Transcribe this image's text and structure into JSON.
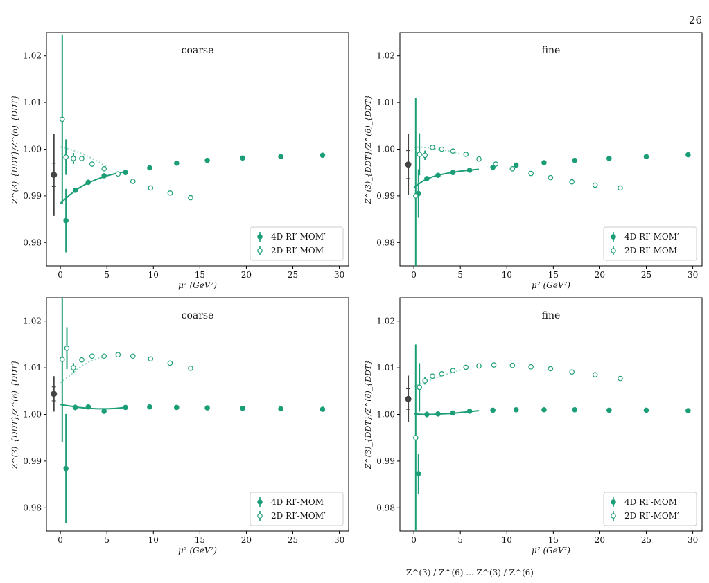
{
  "page_number": "26",
  "caption_fragment": "Z^(3) / Z^(6) ... Z^(3) / Z^(6)",
  "colors": {
    "green": "#1b9e77",
    "light_green": "#98d8c2",
    "estimate": "#444444"
  },
  "chart_data": [
    {
      "type": "scatter",
      "title": "coarse",
      "xlabel": "μ² (GeV²)",
      "ylabel": "Z^(3)_{DDT}/Z^(6)_{DDT}",
      "xlim": [
        -1.5,
        31
      ],
      "ylim": [
        0.975,
        1.025
      ],
      "xticks": [
        0,
        5,
        10,
        15,
        20,
        25,
        30
      ],
      "yticks": [
        0.98,
        0.99,
        1.0,
        1.01,
        1.02
      ],
      "legend": "bottom-right",
      "series": [
        {
          "name": "4D RI′-MOM′",
          "marker": "filled",
          "x": [
            0.6,
            1.6,
            3.0,
            4.7,
            7.0,
            9.6,
            12.5,
            15.8,
            19.6,
            23.7,
            28.2
          ],
          "y": [
            0.9847,
            0.9912,
            0.9929,
            0.9943,
            0.995,
            0.996,
            0.997,
            0.9976,
            0.9981,
            0.9984,
            0.9987
          ],
          "err": [
            0.0068,
            0.0004,
            0.0003,
            0.0002,
            0.0002,
            0.0002,
            0.0002,
            0.0002,
            0.0002,
            0.0002,
            0.0002
          ]
        },
        {
          "name": "2D RI′-MOM",
          "marker": "open",
          "x": [
            0.2,
            0.6,
            1.4,
            2.3,
            3.4,
            4.7,
            6.2,
            7.8,
            9.7,
            11.8,
            14.0
          ],
          "y": [
            1.0064,
            0.9983,
            0.998,
            0.998,
            0.9968,
            0.9958,
            0.9947,
            0.9931,
            0.9917,
            0.9906,
            0.9896
          ],
          "err": [
            0.0182,
            0.0038,
            0.0012,
            0.0004,
            0.0003,
            0.0003,
            0.0002,
            0.0002,
            0.0002,
            0.0002,
            0.0002
          ]
        }
      ],
      "fits": [
        {
          "series": 0,
          "x": [
            0,
            0.5,
            1,
            2,
            3,
            4,
            5,
            6,
            7
          ],
          "y": [
            0.9884,
            0.9893,
            0.9902,
            0.9917,
            0.9928,
            0.9936,
            0.9943,
            0.9948,
            0.9952
          ]
        },
        {
          "series": 1,
          "x": [
            0,
            1,
            2,
            3,
            4,
            5
          ],
          "y": [
            1.0005,
            1.0,
            0.9993,
            0.9984,
            0.9974,
            0.9962
          ]
        }
      ],
      "estimate": {
        "x": -0.7,
        "y": 0.9945,
        "err_total": 0.0088,
        "err_stat": 0.0025
      }
    },
    {
      "type": "scatter",
      "title": "fine",
      "xlabel": "μ² (GeV²)",
      "ylabel": "Z^(3)_{DDT}/Z^(6)_{DDT}",
      "xlim": [
        -1.5,
        31
      ],
      "ylim": [
        0.975,
        1.025
      ],
      "xticks": [
        0,
        5,
        10,
        15,
        20,
        25,
        30
      ],
      "yticks": [
        0.98,
        0.99,
        1.0,
        1.01,
        1.02
      ],
      "legend": "bottom-right",
      "series": [
        {
          "name": "4D RI′-MOM′",
          "marker": "filled",
          "x": [
            0.5,
            1.4,
            2.6,
            4.2,
            6.0,
            8.5,
            11.0,
            14.0,
            17.3,
            21.0,
            25.0,
            29.5
          ],
          "y": [
            0.9905,
            0.9937,
            0.9944,
            0.995,
            0.9955,
            0.9961,
            0.9966,
            0.9971,
            0.9976,
            0.998,
            0.9984,
            0.9988
          ],
          "err": [
            0.0052,
            0.0004,
            0.0003,
            0.0002,
            0.0002,
            0.0002,
            0.0002,
            0.0002,
            0.0002,
            0.0002,
            0.0002,
            0.0002
          ]
        },
        {
          "name": "2D RI′-MOM",
          "marker": "open",
          "x": [
            0.2,
            0.6,
            1.2,
            2.0,
            3.0,
            4.2,
            5.6,
            7.0,
            8.8,
            10.6,
            12.6,
            14.7,
            17.0,
            19.5,
            22.2
          ],
          "y": [
            0.99,
            0.9989,
            0.9987,
            1.0004,
            1.0,
            0.9996,
            0.9989,
            0.9979,
            0.9968,
            0.9958,
            0.9948,
            0.9939,
            0.993,
            0.9923,
            0.9917
          ],
          "err": [
            0.021,
            0.0045,
            0.001,
            0.0004,
            0.0003,
            0.0002,
            0.0002,
            0.0002,
            0.0002,
            0.0002,
            0.0002,
            0.0002,
            0.0002,
            0.0002,
            0.0002
          ]
        }
      ],
      "fits": [
        {
          "series": 0,
          "x": [
            0,
            0.5,
            1,
            2,
            3,
            4,
            5,
            6,
            7
          ],
          "y": [
            0.9918,
            0.9925,
            0.9932,
            0.9941,
            0.9946,
            0.995,
            0.9953,
            0.9955,
            0.9957
          ]
        },
        {
          "series": 1,
          "x": [
            0,
            1,
            2,
            3,
            4,
            5
          ],
          "y": [
            1.0004,
            1.0004,
            1.0002,
            0.9999,
            0.9995,
            0.999
          ]
        }
      ],
      "estimate": {
        "x": -0.6,
        "y": 0.9967,
        "err_total": 0.0065,
        "err_stat": 0.003
      }
    },
    {
      "type": "scatter",
      "title": "coarse",
      "xlabel": "μ² (GeV²)",
      "ylabel": "Z^(3)_{DDT}/Z^(6)_{DDT}",
      "xlim": [
        -1.5,
        31
      ],
      "ylim": [
        0.975,
        1.025
      ],
      "xticks": [
        0,
        5,
        10,
        15,
        20,
        25,
        30
      ],
      "yticks": [
        0.98,
        0.99,
        1.0,
        1.01,
        1.02
      ],
      "legend": "bottom-right",
      "series": [
        {
          "name": "4D RI′-MOM",
          "marker": "filled",
          "x": [
            0.6,
            1.6,
            3.0,
            4.7,
            7.0,
            9.6,
            12.5,
            15.8,
            19.6,
            23.7,
            28.2
          ],
          "y": [
            0.9884,
            1.0015,
            1.0016,
            1.0007,
            1.0015,
            1.0016,
            1.0015,
            1.0014,
            1.0013,
            1.0012,
            1.0011
          ],
          "err": [
            0.0117,
            0.0006,
            0.0002,
            0.0006,
            0.0002,
            0.0002,
            0.0002,
            0.0002,
            0.0002,
            0.0002,
            0.0002
          ]
        },
        {
          "name": "2D RI′-MOM′",
          "marker": "open",
          "x": [
            0.2,
            0.7,
            1.4,
            2.3,
            3.4,
            4.7,
            6.2,
            7.8,
            9.7,
            11.8,
            14.0
          ],
          "y": [
            1.0118,
            1.0142,
            1.01,
            1.0117,
            1.0125,
            1.0125,
            1.0128,
            1.0125,
            1.0119,
            1.011,
            1.0099
          ],
          "err": [
            0.0177,
            0.0045,
            0.001,
            0.0004,
            0.0003,
            0.0002,
            0.0002,
            0.0002,
            0.0002,
            0.0002,
            0.0002
          ]
        }
      ],
      "fits": [
        {
          "series": 0,
          "x": [
            0,
            1,
            2,
            3,
            4,
            5,
            6,
            7
          ],
          "y": [
            1.0021,
            1.0018,
            1.0015,
            1.0013,
            1.0012,
            1.0012,
            1.0013,
            1.0015
          ]
        },
        {
          "series": 1,
          "x": [
            0,
            1,
            2,
            3,
            4,
            5
          ],
          "y": [
            1.0068,
            1.0083,
            1.01,
            1.0112,
            1.012,
            1.0124
          ]
        }
      ],
      "estimate": {
        "x": -0.7,
        "y": 1.0044,
        "err_total": 0.0038,
        "err_stat": 0.0015
      }
    },
    {
      "type": "scatter",
      "title": "fine",
      "xlabel": "μ² (GeV²)",
      "ylabel": "Z^(3)_{DDT}/Z^(6)_{DDT}",
      "xlim": [
        -1.5,
        31
      ],
      "ylim": [
        0.975,
        1.025
      ],
      "xticks": [
        0,
        5,
        10,
        15,
        20,
        25,
        30
      ],
      "yticks": [
        0.98,
        0.99,
        1.0,
        1.01,
        1.02
      ],
      "legend": "bottom-right",
      "series": [
        {
          "name": "4D RI′-MOM",
          "marker": "filled",
          "x": [
            0.5,
            1.4,
            2.6,
            4.2,
            6.0,
            8.5,
            11.0,
            14.0,
            17.3,
            21.0,
            25.0,
            29.5
          ],
          "y": [
            0.9873,
            1.0,
            1.0001,
            1.0003,
            1.0007,
            1.0009,
            1.001,
            1.001,
            1.001,
            1.0009,
            1.0009,
            1.0008
          ],
          "err": [
            0.0043,
            0.0006,
            0.0002,
            0.0002,
            0.0002,
            0.0002,
            0.0002,
            0.0002,
            0.0002,
            0.0002,
            0.0002,
            0.0002
          ]
        },
        {
          "name": "2D RI′-MOM′",
          "marker": "open",
          "x": [
            0.2,
            0.6,
            1.2,
            2.0,
            3.0,
            4.2,
            5.6,
            7.0,
            8.6,
            10.6,
            12.6,
            14.7,
            17.0,
            19.5,
            22.2
          ],
          "y": [
            0.995,
            1.0058,
            1.0072,
            1.0082,
            1.0087,
            1.0094,
            1.0101,
            1.0104,
            1.0106,
            1.0105,
            1.0102,
            1.0098,
            1.0091,
            1.0085,
            1.0077
          ],
          "err": [
            0.02,
            0.0052,
            0.0008,
            0.0004,
            0.0003,
            0.0002,
            0.0002,
            0.0002,
            0.0002,
            0.0002,
            0.0002,
            0.0002,
            0.0002,
            0.0002,
            0.0002
          ]
        }
      ],
      "fits": [
        {
          "series": 0,
          "x": [
            0,
            1,
            2,
            3,
            4,
            5,
            6,
            7
          ],
          "y": [
            1.0001,
            1.0,
            1.0,
            1.0001,
            1.0002,
            1.0004,
            1.0006,
            1.0008
          ]
        },
        {
          "series": 1,
          "x": [
            0,
            1,
            2,
            3,
            4,
            5
          ],
          "y": [
            1.006,
            1.0068,
            1.0076,
            1.0083,
            1.0089,
            1.0095
          ]
        }
      ],
      "estimate": {
        "x": -0.6,
        "y": 1.0033,
        "err_total": 0.005,
        "err_stat": 0.0022
      }
    }
  ]
}
